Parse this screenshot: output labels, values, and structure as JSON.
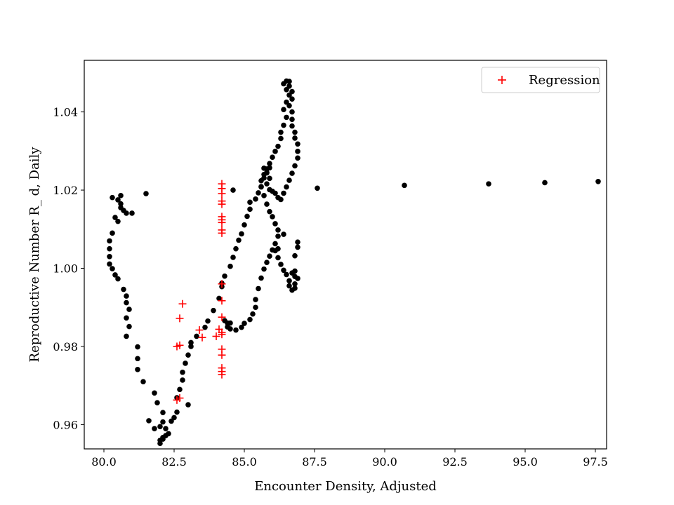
{
  "chart_data": {
    "type": "scatter",
    "title": "",
    "xlabel": "Encounter Density, Adjusted",
    "ylabel": "Reproductive Number R_ d, Daily",
    "xlim": [
      79.3,
      97.9
    ],
    "ylim": [
      0.9538,
      1.0532
    ],
    "x_ticks": [
      80.0,
      82.5,
      85.0,
      87.5,
      90.0,
      92.5,
      95.0,
      97.5
    ],
    "x_tick_labels": [
      "80.0",
      "82.5",
      "85.0",
      "87.5",
      "90.0",
      "92.5",
      "95.0",
      "97.5"
    ],
    "y_ticks": [
      0.96,
      0.98,
      1.0,
      1.02,
      1.04
    ],
    "y_tick_labels": [
      "0.96",
      "0.98",
      "1.00",
      "1.02",
      "1.04"
    ],
    "grid": false,
    "legend_position": "upper right",
    "series": [
      {
        "name": "",
        "marker": "filled-circle",
        "color": "#000000",
        "points": [
          [
            81.5,
            1.0191
          ],
          [
            80.3,
            1.0181
          ],
          [
            80.5,
            1.0175
          ],
          [
            80.6,
            1.0186
          ],
          [
            80.6,
            1.0165
          ],
          [
            80.6,
            1.0155
          ],
          [
            80.7,
            1.0148
          ],
          [
            80.8,
            1.0141
          ],
          [
            81.0,
            1.0141
          ],
          [
            80.4,
            1.013
          ],
          [
            80.5,
            1.012
          ],
          [
            80.3,
            1.009
          ],
          [
            80.2,
            1.007
          ],
          [
            80.2,
            1.005
          ],
          [
            80.2,
            1.003
          ],
          [
            80.2,
            1.0011
          ],
          [
            80.3,
            0.9999
          ],
          [
            80.4,
            0.9983
          ],
          [
            80.5,
            0.9973
          ],
          [
            80.7,
            0.9946
          ],
          [
            80.8,
            0.9929
          ],
          [
            80.8,
            0.9912
          ],
          [
            80.9,
            0.9895
          ],
          [
            80.8,
            0.9873
          ],
          [
            80.9,
            0.9851
          ],
          [
            80.8,
            0.9826
          ],
          [
            81.2,
            0.9799
          ],
          [
            81.2,
            0.9769
          ],
          [
            81.2,
            0.9741
          ],
          [
            81.4,
            0.971
          ],
          [
            81.8,
            0.9681
          ],
          [
            81.9,
            0.9656
          ],
          [
            82.1,
            0.9631
          ],
          [
            81.6,
            0.961
          ],
          [
            81.8,
            0.959
          ],
          [
            82.0,
            0.9595
          ],
          [
            82.1,
            0.9607
          ],
          [
            82.2,
            0.959
          ],
          [
            82.2,
            0.9572
          ],
          [
            82.1,
            0.9563
          ],
          [
            82.0,
            0.956
          ],
          [
            82.0,
            0.9552
          ],
          [
            82.1,
            0.9567
          ],
          [
            82.3,
            0.9577
          ],
          [
            82.4,
            0.9609
          ],
          [
            82.5,
            0.9618
          ],
          [
            82.6,
            0.9632
          ],
          [
            82.6,
            0.9669
          ],
          [
            82.7,
            0.969
          ],
          [
            82.8,
            0.9714
          ],
          [
            82.8,
            0.9734
          ],
          [
            82.9,
            0.9757
          ],
          [
            83.0,
            0.9778
          ],
          [
            83.1,
            0.98
          ],
          [
            83.1,
            0.981
          ],
          [
            83.0,
            0.9651
          ],
          [
            83.3,
            0.9826
          ],
          [
            83.6,
            0.9849
          ],
          [
            83.7,
            0.9865
          ],
          [
            83.9,
            0.9892
          ],
          [
            84.1,
            0.9923
          ],
          [
            84.2,
            0.9953
          ],
          [
            84.2,
            0.9962
          ],
          [
            84.3,
            0.998
          ],
          [
            84.5,
            1.0005
          ],
          [
            84.6,
            1.0028
          ],
          [
            84.7,
            1.005
          ],
          [
            84.8,
            1.0072
          ],
          [
            84.9,
            1.0088
          ],
          [
            85.0,
            1.0111
          ],
          [
            85.1,
            1.0133
          ],
          [
            85.2,
            1.0151
          ],
          [
            85.2,
            1.0169
          ],
          [
            85.4,
            1.0177
          ],
          [
            85.5,
            1.0193
          ],
          [
            85.6,
            1.0209
          ],
          [
            85.6,
            1.0224
          ],
          [
            85.7,
            1.024
          ],
          [
            85.7,
            1.0256
          ],
          [
            85.8,
            1.0254
          ],
          [
            85.9,
            1.0257
          ],
          [
            85.8,
            1.0244
          ],
          [
            85.9,
            1.023
          ],
          [
            85.8,
            1.0216
          ],
          [
            85.9,
            1.0201
          ],
          [
            86.0,
            1.0197
          ],
          [
            86.1,
            1.0192
          ],
          [
            86.2,
            1.0181
          ],
          [
            86.3,
            1.0176
          ],
          [
            86.4,
            1.0192
          ],
          [
            86.5,
            1.0208
          ],
          [
            86.6,
            1.0225
          ],
          [
            86.7,
            1.0243
          ],
          [
            86.8,
            1.0262
          ],
          [
            86.9,
            1.0282
          ],
          [
            86.9,
            1.0299
          ],
          [
            86.9,
            1.0318
          ],
          [
            86.8,
            1.0333
          ],
          [
            86.8,
            1.0348
          ],
          [
            86.7,
            1.0364
          ],
          [
            86.7,
            1.0381
          ],
          [
            86.7,
            1.04
          ],
          [
            86.6,
            1.0416
          ],
          [
            86.7,
            1.0433
          ],
          [
            86.7,
            1.0452
          ],
          [
            86.6,
            1.0466
          ],
          [
            86.6,
            1.0478
          ],
          [
            86.5,
            1.0479
          ],
          [
            86.4,
            1.0472
          ],
          [
            86.5,
            1.0457
          ],
          [
            86.6,
            1.0443
          ],
          [
            86.5,
            1.0425
          ],
          [
            86.4,
            1.0406
          ],
          [
            86.5,
            1.0386
          ],
          [
            86.4,
            1.0366
          ],
          [
            86.3,
            1.0348
          ],
          [
            86.3,
            1.0332
          ],
          [
            86.2,
            1.0312
          ],
          [
            86.1,
            1.0299
          ],
          [
            86.0,
            1.0284
          ],
          [
            85.9,
            1.0268
          ],
          [
            85.8,
            1.0245
          ],
          [
            85.7,
            1.0231
          ],
          [
            85.6,
            1.0208
          ],
          [
            85.7,
            1.0186
          ],
          [
            85.8,
            1.0164
          ],
          [
            85.9,
            1.0145
          ],
          [
            86.0,
            1.0132
          ],
          [
            86.1,
            1.0114
          ],
          [
            86.2,
            1.0098
          ],
          [
            86.2,
            1.0082
          ],
          [
            86.1,
            1.0063
          ],
          [
            86.1,
            1.0045
          ],
          [
            86.2,
            1.0027
          ],
          [
            86.3,
            1.001
          ],
          [
            86.4,
            0.9995
          ],
          [
            86.5,
            0.9984
          ],
          [
            86.6,
            0.9968
          ],
          [
            86.6,
            0.9955
          ],
          [
            86.7,
            0.9944
          ],
          [
            86.8,
            0.9949
          ],
          [
            86.8,
            0.996
          ],
          [
            86.8,
            0.9979
          ],
          [
            86.8,
            0.9993
          ],
          [
            86.9,
            0.9974
          ],
          [
            86.7,
            0.9988
          ],
          [
            86.8,
            1.0032
          ],
          [
            86.9,
            1.0054
          ],
          [
            86.9,
            1.0067
          ],
          [
            86.4,
            1.0087
          ],
          [
            86.2,
            1.005
          ],
          [
            86.0,
            1.0047
          ],
          [
            85.9,
            1.0031
          ],
          [
            85.8,
            1.0015
          ],
          [
            85.7,
            0.9998
          ],
          [
            85.6,
            0.9975
          ],
          [
            85.5,
            0.9948
          ],
          [
            85.4,
            0.992
          ],
          [
            85.4,
            0.99
          ],
          [
            85.3,
            0.9883
          ],
          [
            85.2,
            0.9869
          ],
          [
            85.0,
            0.9859
          ],
          [
            84.9,
            0.9849
          ],
          [
            84.7,
            0.9842
          ],
          [
            84.5,
            0.9845
          ],
          [
            84.4,
            0.985
          ],
          [
            84.4,
            0.986
          ],
          [
            84.3,
            0.9866
          ],
          [
            84.5,
            0.986
          ],
          [
            84.6,
            1.02
          ],
          [
            87.6,
            1.0205
          ],
          [
            90.7,
            1.0212
          ],
          [
            93.7,
            1.0216
          ],
          [
            95.7,
            1.0219
          ],
          [
            97.6,
            1.0222
          ]
        ]
      },
      {
        "name": "Regression",
        "marker": "plus",
        "color": "#ff0000",
        "points": [
          [
            82.8,
            0.9909
          ],
          [
            82.7,
            0.9872
          ],
          [
            82.6,
            0.98
          ],
          [
            82.7,
            0.9803
          ],
          [
            82.7,
            0.9668
          ],
          [
            82.6,
            0.9663
          ],
          [
            83.4,
            0.9842
          ],
          [
            83.5,
            0.9823
          ],
          [
            84.0,
            0.9826
          ],
          [
            84.1,
            0.9844
          ],
          [
            84.2,
            1.0216
          ],
          [
            84.2,
            1.0204
          ],
          [
            84.2,
            1.0191
          ],
          [
            84.2,
            1.0172
          ],
          [
            84.2,
            1.0164
          ],
          [
            84.2,
            1.0132
          ],
          [
            84.2,
            1.0124
          ],
          [
            84.2,
            1.0117
          ],
          [
            84.2,
            1.0098
          ],
          [
            84.2,
            1.009
          ],
          [
            84.2,
            0.996
          ],
          [
            84.2,
            0.9917
          ],
          [
            84.2,
            0.9875
          ],
          [
            84.2,
            0.9836
          ],
          [
            84.2,
            0.9831
          ],
          [
            84.2,
            0.9793
          ],
          [
            84.2,
            0.9778
          ],
          [
            84.2,
            0.9745
          ],
          [
            84.2,
            0.9736
          ],
          [
            84.2,
            0.9728
          ]
        ]
      }
    ]
  }
}
